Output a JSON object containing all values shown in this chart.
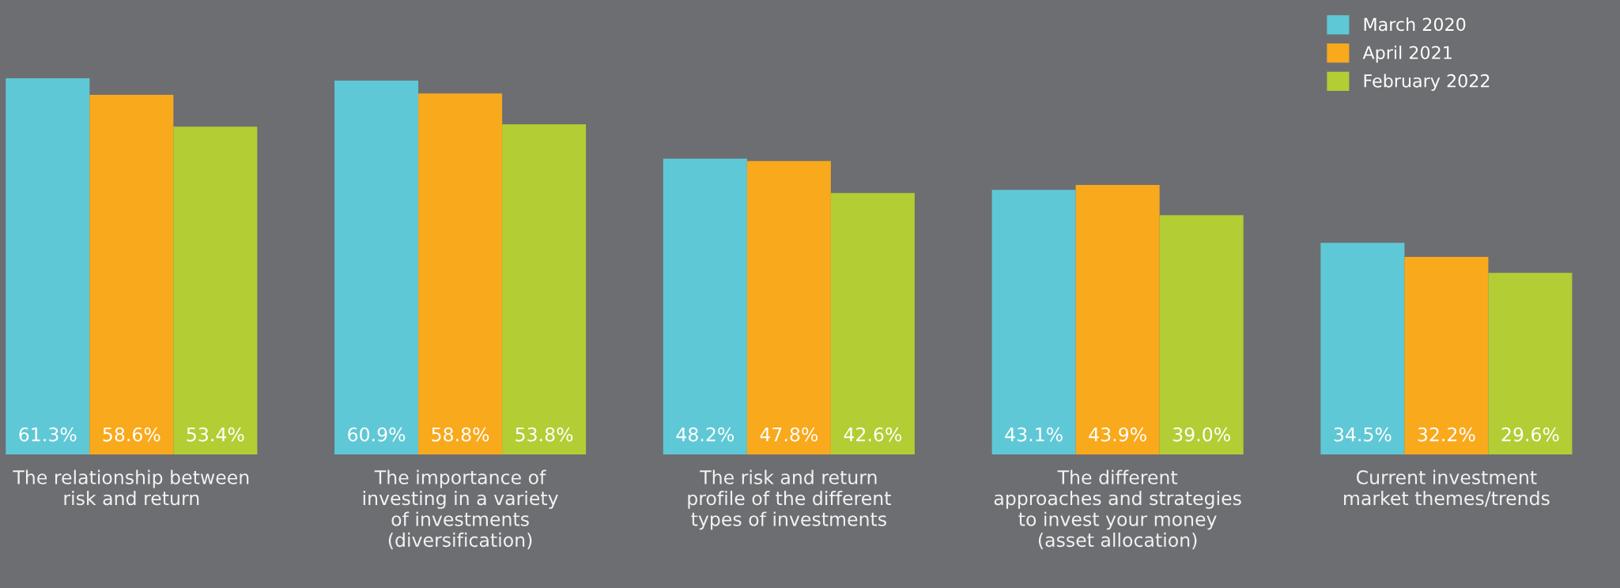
{
  "chart_data": {
    "type": "bar",
    "categories": [
      "The relationship between\nrisk and return",
      "The importance of\ninvesting in a variety\nof investments\n(diversification)",
      "The risk and return\nprofile of the different\ntypes of investments",
      "The different\napproaches and strategies\nto invest your money\n(asset allocation)",
      "Current investment\nmarket themes/trends"
    ],
    "series": [
      {
        "name": "March 2020",
        "color": "#5fc8d6",
        "values": [
          61.3,
          60.9,
          48.2,
          43.1,
          34.5
        ],
        "value_labels": [
          "61.3%",
          "60.9%",
          "48.2%",
          "43.1%",
          "34.5%"
        ]
      },
      {
        "name": "April 2021",
        "color": "#f9a91c",
        "values": [
          58.6,
          58.8,
          47.8,
          43.9,
          32.2
        ],
        "value_labels": [
          "58.6%",
          "58.8%",
          "47.8%",
          "43.9%",
          "32.2%"
        ]
      },
      {
        "name": "February 2022",
        "color": "#b3cd35",
        "values": [
          53.4,
          53.8,
          42.6,
          39.0,
          29.6
        ],
        "value_labels": [
          "53.4%",
          "53.8%",
          "42.6%",
          "39.0%",
          "29.6%"
        ]
      }
    ],
    "legend": "top right",
    "grid": false
  }
}
